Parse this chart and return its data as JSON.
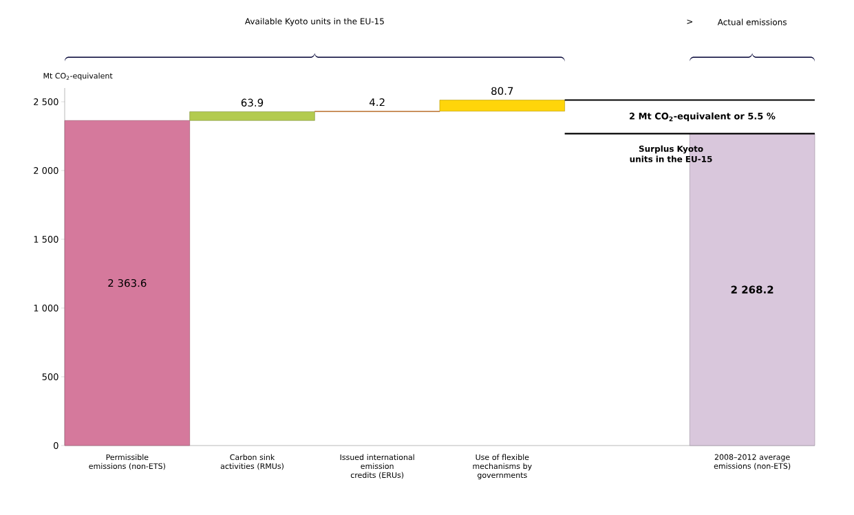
{
  "chart_data": {
    "type": "bar",
    "categories": [
      "Permissible emissions (non-ETS)",
      "Carbon sink activities (RMUs)",
      "Issued international emission credits (ERUs)",
      "Use of flexible mechanisms by governments",
      null,
      "2008–2012 average emissions (non-ETS)"
    ],
    "values": [
      2363.6,
      63.9,
      4.2,
      80.7,
      null,
      2268.2
    ],
    "base": [
      0,
      2363.6,
      2427.5,
      2431.7,
      null,
      0
    ],
    "colors": [
      "#d5799c",
      "#b3cb4f",
      "#f08c30",
      "#ffd50a",
      null,
      "#d9c7dc"
    ],
    "value_labels": [
      "2 363.6",
      "63.9",
      "4.2",
      "80.7",
      null,
      "**2 268.2**"
    ],
    "ylabel": "Mt CO$_{2}$-equivalent",
    "ylim": [
      0,
      2600
    ],
    "yticks": [
      0,
      500,
      {
        "value": 1000,
        "label": "1 000"
      },
      {
        "value": 1500,
        "label": "1 500"
      },
      {
        "value": 2000,
        "label": "2 000"
      },
      {
        "value": 2500,
        "label": "2 500"
      }
    ],
    "ref_lines": [
      {
        "axis": "y",
        "value": 2512.4,
        "label": null
      },
      {
        "axis": "y",
        "value": 2268.2,
        "label": "2 Mt CO$_{2}$-equivalent or 5.5 %"
      }
    ],
    "annotations": [
      "Available Kyoto units in the EU-15",
      ">",
      "Actual emissions",
      "Surplus Kyoto units in the EU-15"
    ]
  }
}
